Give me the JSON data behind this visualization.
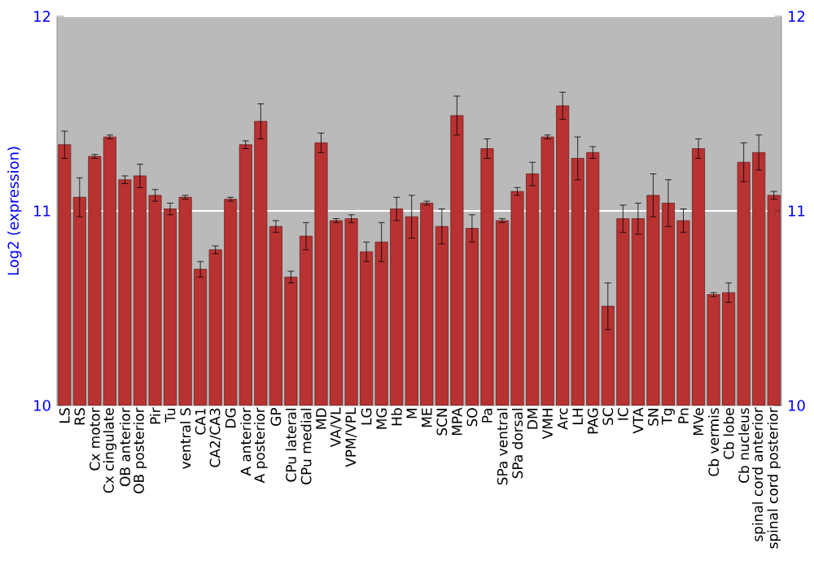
{
  "chart_data": {
    "type": "bar",
    "ylabel": "Log2 (expression)",
    "categories": [
      "LS",
      "RS",
      "Cx motor",
      "Cx cingulate",
      "OB anterior",
      "OB posterior",
      "Pir",
      "Tu",
      "ventral S",
      "CA1",
      "CA2/CA3",
      "DG",
      "A anterior",
      "A posterior",
      "GP",
      "CPu lateral",
      "CPu medial",
      "MD",
      "VA/VL",
      "VPM/VPL",
      "LG",
      "MG",
      "Hb",
      "M",
      "ME",
      "SCN",
      "MPA",
      "SO",
      "Pa",
      "SPa ventral",
      "SPa dorsal",
      "DM",
      "VMH",
      "Arc",
      "LH",
      "PAG",
      "SC",
      "IC",
      "VTA",
      "SN",
      "Tg",
      "Pn",
      "MVe",
      "Cb vermis",
      "Cb lobe",
      "Cb nucleus",
      "spinal cord anterior",
      "spinal cord posterior"
    ],
    "values": [
      11.34,
      11.07,
      11.28,
      11.38,
      11.16,
      11.18,
      11.08,
      11.01,
      11.07,
      10.7,
      10.8,
      11.06,
      11.34,
      11.46,
      10.92,
      10.66,
      10.87,
      11.35,
      10.95,
      10.96,
      10.79,
      10.84,
      11.01,
      10.97,
      11.04,
      10.92,
      11.49,
      10.91,
      11.32,
      10.95,
      11.1,
      11.19,
      11.38,
      11.54,
      11.27,
      11.3,
      10.51,
      10.96,
      10.96,
      11.08,
      11.04,
      10.95,
      11.32,
      10.57,
      10.58,
      11.25,
      11.3,
      11.08
    ],
    "errors": [
      0.07,
      0.1,
      0.01,
      0.01,
      0.02,
      0.06,
      0.03,
      0.03,
      0.01,
      0.04,
      0.02,
      0.01,
      0.02,
      0.09,
      0.03,
      0.03,
      0.07,
      0.05,
      0.01,
      0.02,
      0.05,
      0.1,
      0.06,
      0.11,
      0.01,
      0.09,
      0.1,
      0.07,
      0.05,
      0.01,
      0.02,
      0.06,
      0.01,
      0.07,
      0.11,
      0.03,
      0.12,
      0.07,
      0.08,
      0.11,
      0.12,
      0.06,
      0.05,
      0.01,
      0.05,
      0.1,
      0.09,
      0.02
    ],
    "color": "#b83232",
    "ylim": [
      10,
      12
    ],
    "yticks": [
      10,
      11,
      12
    ],
    "y2lim": [
      10,
      12
    ],
    "y2ticks": [
      10,
      11,
      12
    ],
    "grid": "y"
  }
}
